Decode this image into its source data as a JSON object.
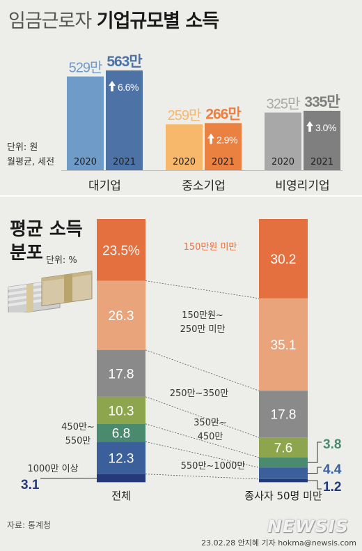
{
  "title": {
    "light": "임금근로자",
    "bold": "기업규모별 소득"
  },
  "top_chart_unit": [
    "단위: 원",
    "월평균, 세전"
  ],
  "distribution_title": [
    "평균 소득",
    "분포"
  ],
  "distribution_unit": "단위: %",
  "source": "자료: 통계청",
  "credit": "23.02.28 안지혜 기자 hokma@newsis.com",
  "logo": "NEWSIS",
  "colors": {
    "big_2020": "#6f9bc9",
    "big_2021": "#4d73a6",
    "sme_2020": "#f7b86b",
    "sme_2021": "#eb8140",
    "np_2020": "#a8a8a8",
    "np_2021": "#7f7f7f",
    "value_2020": "#a9a9a9",
    "up_arrow": "#ffffff"
  },
  "chart_data": [
    {
      "type": "bar",
      "categories": [
        "대기업",
        "중소기업",
        "비영리기업"
      ],
      "series": [
        {
          "name": "2020",
          "values": [
            529,
            259,
            325
          ],
          "labels": [
            "529만",
            "259만",
            "325만"
          ]
        },
        {
          "name": "2021",
          "values": [
            563,
            266,
            335
          ],
          "labels": [
            "563만",
            "266만",
            "335만"
          ]
        }
      ],
      "growth_labels": [
        "6.6%",
        "2.9%",
        "3.0%"
      ],
      "xlabel": "",
      "ylabel": "",
      "ylim": [
        0,
        563
      ]
    },
    {
      "type": "bar",
      "stacked": true,
      "orientation": "vertical",
      "categories": [
        "전체",
        "종사자 50명 미만"
      ],
      "bands": [
        {
          "label": "150만원 미만",
          "color": "#e4703f",
          "values": [
            23.5,
            30.2
          ],
          "display": [
            "23.5%",
            "30.2"
          ]
        },
        {
          "label": "150만원~\n250만 미만",
          "color": "#e9a47c",
          "values": [
            26.3,
            35.1
          ],
          "display": [
            "26.3",
            "35.1"
          ]
        },
        {
          "label": "250만~350만",
          "color": "#8a8a8a",
          "values": [
            17.8,
            17.8
          ],
          "display": [
            "17.8",
            "17.8"
          ]
        },
        {
          "label": "350만~\n450만",
          "color": "#8da64e",
          "values": [
            10.3,
            7.6
          ],
          "display": [
            "10.3",
            "7.6"
          ]
        },
        {
          "label": "450만~\n550만",
          "color": "#4a8a6e",
          "values": [
            6.8,
            3.8
          ],
          "display": [
            "6.8",
            "3.8"
          ]
        },
        {
          "label": "550만~1000만",
          "color": "#3b5f9a",
          "values": [
            12.3,
            4.4
          ],
          "display": [
            "12.3",
            "4.4"
          ]
        },
        {
          "label": "1000만 이상",
          "color": "#24397a",
          "values": [
            3.1,
            1.2
          ],
          "display": [
            "3.1",
            "1.2"
          ]
        }
      ],
      "ylim": [
        0,
        100
      ]
    }
  ]
}
